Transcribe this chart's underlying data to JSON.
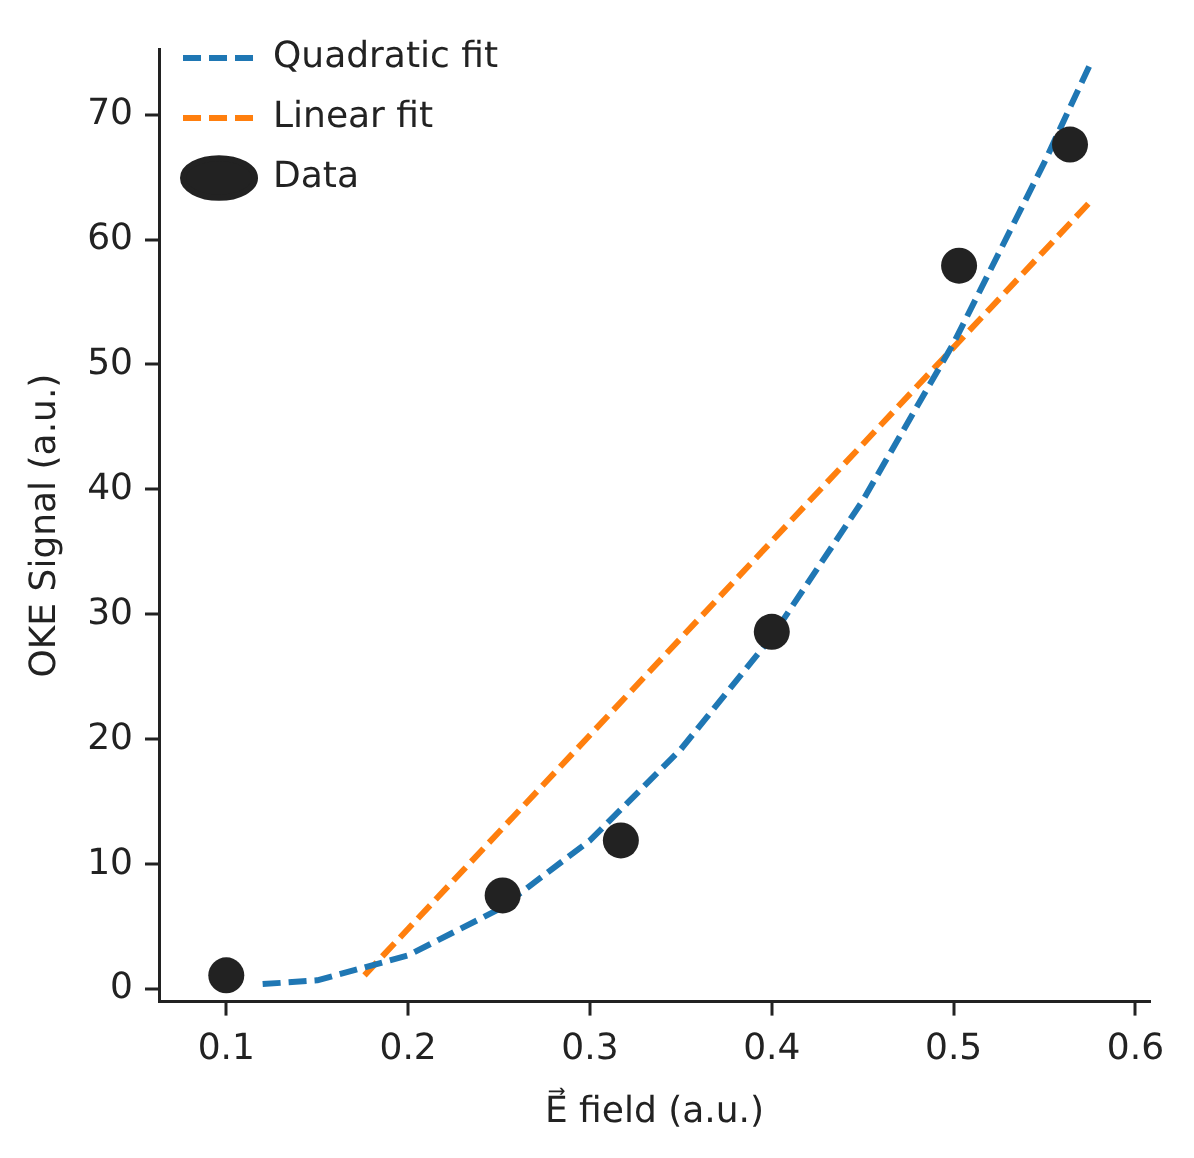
{
  "chart_data": {
    "type": "scatter",
    "xlabel": "E⃗ field (a.u.)",
    "ylabel": "OKE Signal (a.u.)",
    "xlim": [
      0.063,
      0.608
    ],
    "xticks": [
      0.1,
      0.2,
      0.3,
      0.4,
      0.5,
      0.6
    ],
    "ylim": [
      -1,
      75.2
    ],
    "yticks": [
      0,
      10,
      20,
      30,
      40,
      50,
      60,
      70
    ],
    "grid": false,
    "legend": "top left",
    "series": [
      {
        "name": "Quadratic fit",
        "type": "line",
        "color": "#1f77b4",
        "line_style": "dashed",
        "marker": "none",
        "x": [
          0.12,
          0.15,
          0.2,
          0.25,
          0.3,
          0.35,
          0.4,
          0.45,
          0.5,
          0.55,
          0.575
        ],
        "values": [
          0.4,
          0.7,
          2.7,
          6.4,
          11.9,
          19.2,
          28.2,
          39.1,
          51.7,
          66.2,
          74.0
        ]
      },
      {
        "name": "Linear fit",
        "type": "line",
        "color": "#ff7f0e",
        "line_style": "dashed",
        "marker": "none",
        "x": [
          0.176,
          0.575
        ],
        "values": [
          1.1,
          63.0
        ]
      },
      {
        "name": "Data",
        "type": "scatter",
        "color": "#222222",
        "marker": "circle",
        "x": [
          0.1,
          0.252,
          0.317,
          0.4,
          0.503,
          0.564
        ],
        "values": [
          1.1,
          7.5,
          11.9,
          28.6,
          57.9,
          67.6
        ]
      }
    ]
  }
}
